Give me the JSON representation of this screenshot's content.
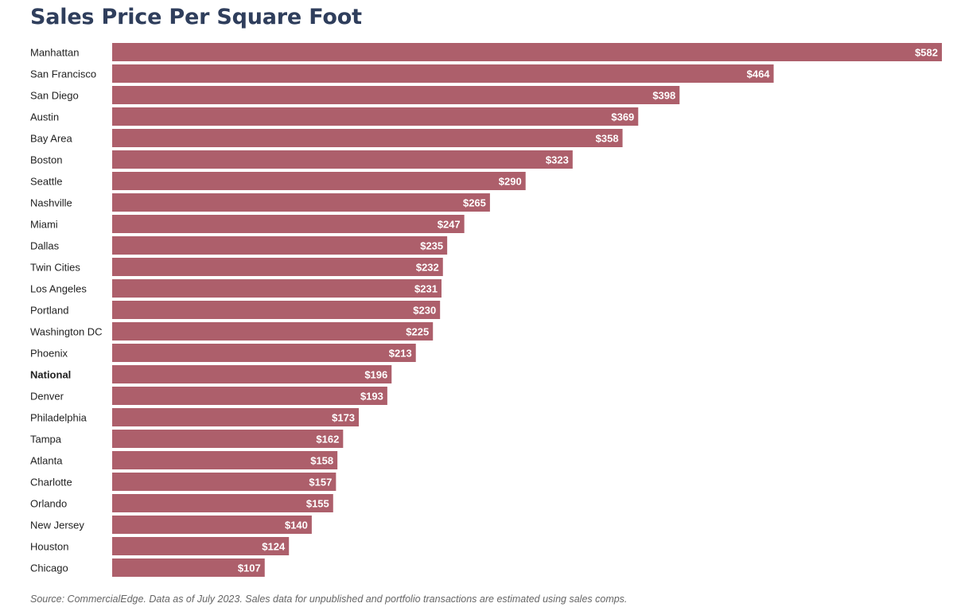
{
  "chart_data": {
    "type": "bar",
    "orientation": "horizontal",
    "title": "Sales Price Per Square Foot",
    "categories": [
      "Manhattan",
      "San Francisco",
      "San Diego",
      "Austin",
      "Bay Area",
      "Boston",
      "Seattle",
      "Nashville",
      "Miami",
      "Dallas",
      "Twin Cities",
      "Los Angeles",
      "Portland",
      "Washington DC",
      "Phoenix",
      "National",
      "Denver",
      "Philadelphia",
      "Tampa",
      "Atlanta",
      "Charlotte",
      "Orlando",
      "New Jersey",
      "Houston",
      "Chicago"
    ],
    "values": [
      582,
      464,
      398,
      369,
      358,
      323,
      290,
      265,
      247,
      235,
      232,
      231,
      230,
      225,
      213,
      196,
      193,
      173,
      162,
      158,
      157,
      155,
      140,
      124,
      107
    ],
    "value_labels": [
      "$582",
      "$464",
      "$398",
      "$369",
      "$358",
      "$323",
      "$290",
      "$265",
      "$247",
      "$235",
      "$232",
      "$231",
      "$230",
      "$225",
      "$213",
      "$196",
      "$193",
      "$173",
      "$162",
      "$158",
      "$157",
      "$155",
      "$140",
      "$124",
      "$107"
    ],
    "highlighted_category": "National",
    "bar_color": "#ad5f6b",
    "xlabel": "",
    "ylabel": "",
    "xlim": [
      0,
      582
    ],
    "grid": false,
    "legend": "none"
  },
  "source_note": "Source: CommercialEdge. Data as of July 2023. Sales data for unpublished and portfolio transactions are estimated using sales comps."
}
